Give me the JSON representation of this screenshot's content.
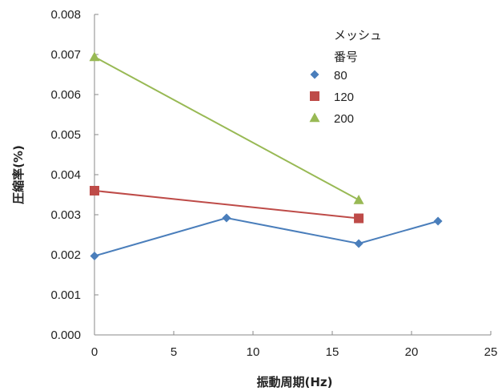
{
  "chart_data": {
    "type": "line",
    "xlabel": "振動周期(Hz)",
    "ylabel": "圧縮率(%)",
    "xlim": [
      0,
      25
    ],
    "ylim": [
      0,
      0.008
    ],
    "x_ticks": [
      "0",
      "5",
      "10",
      "15",
      "20",
      "25"
    ],
    "y_ticks": [
      "0.000",
      "0.001",
      "0.002",
      "0.003",
      "0.004",
      "0.005",
      "0.006",
      "0.007",
      "0.008"
    ],
    "grid": false,
    "legend": {
      "title_lines": [
        "メッシュ",
        "番号"
      ],
      "placement": "top-right"
    },
    "series": [
      {
        "name": "80",
        "marker": "diamond",
        "color": "#4a7ebb",
        "points": [
          [
            0,
            0.00197
          ],
          [
            8.33,
            0.00292
          ],
          [
            16.67,
            0.00228
          ],
          [
            21.67,
            0.00284
          ]
        ]
      },
      {
        "name": "120",
        "marker": "square",
        "color": "#be4b48",
        "points": [
          [
            0,
            0.0036
          ],
          [
            16.67,
            0.00291
          ]
        ]
      },
      {
        "name": "200",
        "marker": "triangle",
        "color": "#98b954",
        "points": [
          [
            0,
            0.00694
          ],
          [
            16.67,
            0.00337
          ]
        ]
      }
    ]
  }
}
